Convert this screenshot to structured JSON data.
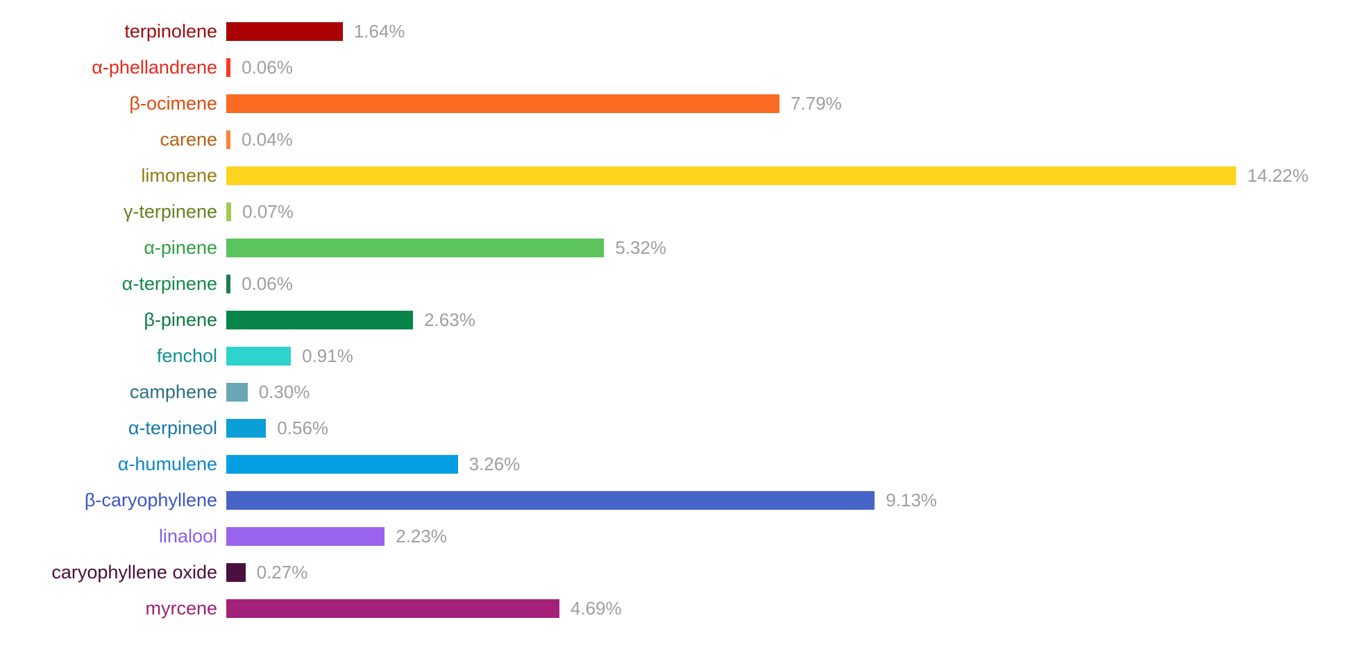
{
  "chart_data": {
    "type": "bar",
    "orientation": "horizontal",
    "title": "",
    "xlabel": "",
    "ylabel": "",
    "unit": "%",
    "grid": false,
    "legend": false,
    "axis_max": 14.22,
    "background_color": "#FFFFFF",
    "value_label_color": "#9E9E9E",
    "categories": [
      "terpinolene",
      "α-phellandrene",
      "β-ocimene",
      "carene",
      "limonene",
      "γ-terpinene",
      "α-pinene",
      "α-terpinene",
      "β-pinene",
      "fenchol",
      "camphene",
      "α-terpineol",
      "α-humulene",
      "β-caryophyllene",
      "linalool",
      "caryophyllene oxide",
      "myrcene"
    ],
    "values": [
      1.64,
      0.06,
      7.79,
      0.04,
      14.22,
      0.07,
      5.32,
      0.06,
      2.63,
      0.91,
      0.3,
      0.56,
      3.26,
      9.13,
      2.23,
      0.27,
      4.69
    ],
    "items": [
      {
        "label": "terpinolene",
        "value": 1.64,
        "display": "1.64%",
        "bar_color": "#A90101",
        "label_color": "#9C0A0A"
      },
      {
        "label": "α-phellandrene",
        "value": 0.06,
        "display": "0.06%",
        "bar_color": "#FF3526",
        "label_color": "#E8291C"
      },
      {
        "label": "β-ocimene",
        "value": 7.79,
        "display": "7.79%",
        "bar_color": "#FA6A20",
        "label_color": "#DD4A0B"
      },
      {
        "label": "carene",
        "value": 0.04,
        "display": "0.04%",
        "bar_color": "#F9823C",
        "label_color": "#B95E11"
      },
      {
        "label": "limonene",
        "value": 14.22,
        "display": "14.22%",
        "bar_color": "#FFD41F",
        "label_color": "#8F7D13"
      },
      {
        "label": "γ-terpinene",
        "value": 0.07,
        "display": "0.07%",
        "bar_color": "#A1CB52",
        "label_color": "#64801F"
      },
      {
        "label": "α-pinene",
        "value": 5.32,
        "display": "5.32%",
        "bar_color": "#5BC45C",
        "label_color": "#2F9E41"
      },
      {
        "label": "α-terpinene",
        "value": 0.06,
        "display": "0.06%",
        "bar_color": "#1F7D4D",
        "label_color": "#118A47"
      },
      {
        "label": "β-pinene",
        "value": 2.63,
        "display": "2.63%",
        "bar_color": "#08854A",
        "label_color": "#0B7A42"
      },
      {
        "label": "fenchol",
        "value": 0.91,
        "display": "0.91%",
        "bar_color": "#2ED3CE",
        "label_color": "#108F90"
      },
      {
        "label": "camphene",
        "value": 0.3,
        "display": "0.30%",
        "bar_color": "#6CA6B4",
        "label_color": "#2A6F82"
      },
      {
        "label": "α-terpineol",
        "value": 0.56,
        "display": "0.56%",
        "bar_color": "#0B9FD8",
        "label_color": "#1578AB"
      },
      {
        "label": "α-humulene",
        "value": 3.26,
        "display": "3.26%",
        "bar_color": "#049EE2",
        "label_color": "#0D85CB"
      },
      {
        "label": "β-caryophyllene",
        "value": 9.13,
        "display": "9.13%",
        "bar_color": "#4765C6",
        "label_color": "#3C55C5"
      },
      {
        "label": "linalool",
        "value": 2.23,
        "display": "2.23%",
        "bar_color": "#9A63EE",
        "label_color": "#8A5BF0"
      },
      {
        "label": "caryophyllene oxide",
        "value": 0.27,
        "display": "0.27%",
        "bar_color": "#4A1040",
        "label_color": "#470E3E"
      },
      {
        "label": "myrcene",
        "value": 4.69,
        "display": "4.69%",
        "bar_color": "#A32179",
        "label_color": "#9D2173"
      }
    ]
  }
}
